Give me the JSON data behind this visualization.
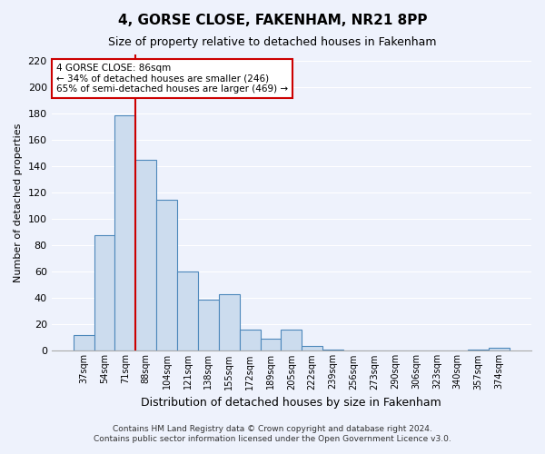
{
  "title": "4, GORSE CLOSE, FAKENHAM, NR21 8PP",
  "subtitle": "Size of property relative to detached houses in Fakenham",
  "xlabel": "Distribution of detached houses by size in Fakenham",
  "ylabel": "Number of detached properties",
  "footer_line1": "Contains HM Land Registry data © Crown copyright and database right 2024.",
  "footer_line2": "Contains public sector information licensed under the Open Government Licence v3.0.",
  "bin_labels": [
    "37sqm",
    "54sqm",
    "71sqm",
    "88sqm",
    "104sqm",
    "121sqm",
    "138sqm",
    "155sqm",
    "172sqm",
    "189sqm",
    "205sqm",
    "222sqm",
    "239sqm",
    "256sqm",
    "273sqm",
    "290sqm",
    "306sqm",
    "323sqm",
    "340sqm",
    "357sqm",
    "374sqm"
  ],
  "bar_heights": [
    12,
    88,
    179,
    145,
    115,
    60,
    39,
    43,
    16,
    9,
    16,
    4,
    1,
    0,
    0,
    0,
    0,
    0,
    0,
    1,
    2
  ],
  "bar_color": "#ccdcee",
  "bar_edge_color": "#4d88bb",
  "vline_x": 2.5,
  "vline_color": "#cc0000",
  "annotation_title": "4 GORSE CLOSE: 86sqm",
  "annotation_line1": "← 34% of detached houses are smaller (246)",
  "annotation_line2": "65% of semi-detached houses are larger (469) →",
  "annotation_box_facecolor": "#ffffff",
  "annotation_box_edgecolor": "#cc0000",
  "ylim": [
    0,
    225
  ],
  "yticks": [
    0,
    20,
    40,
    60,
    80,
    100,
    120,
    140,
    160,
    180,
    200,
    220
  ],
  "background_color": "#eef2fc",
  "grid_color": "#ffffff",
  "title_fontsize": 11,
  "subtitle_fontsize": 9,
  "xlabel_fontsize": 9,
  "ylabel_fontsize": 8,
  "xtick_fontsize": 7,
  "ytick_fontsize": 8,
  "footer_fontsize": 6.5
}
